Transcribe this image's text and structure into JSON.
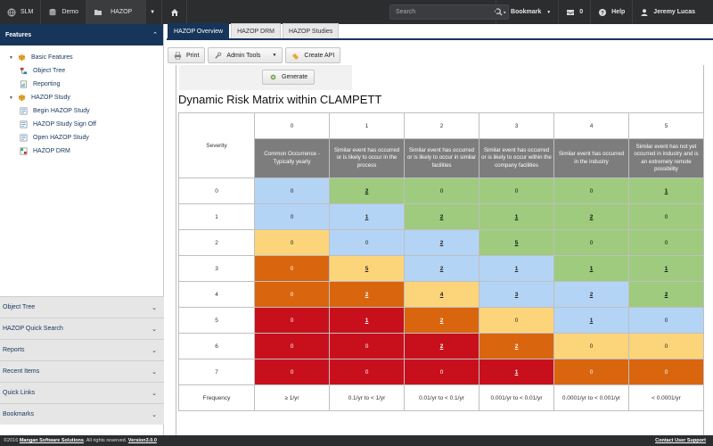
{
  "topbar": {
    "items": [
      {
        "label": "SLM",
        "icon": "globe-icon"
      },
      {
        "label": "Demo",
        "icon": "database-icon"
      },
      {
        "label": "HAZOP",
        "icon": "folder-icon"
      }
    ],
    "home_icon": "home-icon",
    "search_placeholder": "Search",
    "bookmark_label": "Bookmark",
    "inbox_count": "0",
    "help_label": "Help",
    "user_name": "Jeremy Lucas"
  },
  "sidebar": {
    "header": "Features",
    "tree": [
      {
        "label": "Basic Features",
        "level": 1,
        "expanded": true
      },
      {
        "label": "Object Tree",
        "level": 2
      },
      {
        "label": "Reporting",
        "level": 2
      },
      {
        "label": "HAZOP Study",
        "level": 1,
        "expanded": true
      },
      {
        "label": "Begin HAZOP Study",
        "level": 2
      },
      {
        "label": "HAZOP Study Sign Off",
        "level": 2
      },
      {
        "label": "Open HAZOP Study",
        "level": 2
      },
      {
        "label": "HAZOP DRM",
        "level": 2
      }
    ],
    "panels": [
      "Object Tree",
      "HAZOP Quick Search",
      "Reports",
      "Recent Items",
      "Quick Links",
      "Bookmarks"
    ]
  },
  "tabs": [
    "HAZOP Overview",
    "HAZOP DRM",
    "HAZOP Studies"
  ],
  "toolbar": {
    "print": "Print",
    "admin": "Admin Tools",
    "api": "Create API"
  },
  "generate_label": "Generate",
  "matrix": {
    "title": "Dynamic Risk Matrix within CLAMPETT",
    "severity_label": "Severity",
    "frequency_label": "Frequency",
    "col_numbers": [
      "0",
      "1",
      "2",
      "3",
      "4",
      "5"
    ],
    "likelihoods": [
      "Common Occurrence - Typically yearly",
      "Similar event has occurred or is likely to occur in the process",
      "Similar event has occurred or is likely to occur in similar facilities",
      "Similar event has occurred or is likely to occur within the company facilities",
      "Similar event has occurred in the industry",
      "Similar event has not yet occurred in industry and is an extremely remote possibility"
    ],
    "frequencies": [
      "≥ 1/yr",
      "0.1/yr to < 1/yr",
      "0.01/yr to < 0.1/yr",
      "0.001/yr to < 0.01/yr",
      "0.0001/yr to < 0.001/yr",
      "< 0.0001/yr"
    ],
    "rows": [
      {
        "severity": "0",
        "cells": [
          {
            "v": "0",
            "c": "blue"
          },
          {
            "v": "2",
            "c": "green",
            "link": true
          },
          {
            "v": "0",
            "c": "green"
          },
          {
            "v": "0",
            "c": "green"
          },
          {
            "v": "0",
            "c": "green"
          },
          {
            "v": "1",
            "c": "green",
            "link": true
          }
        ]
      },
      {
        "severity": "1",
        "cells": [
          {
            "v": "0",
            "c": "blue"
          },
          {
            "v": "1",
            "c": "blue",
            "link": true
          },
          {
            "v": "2",
            "c": "green",
            "link": true
          },
          {
            "v": "1",
            "c": "green",
            "link": true
          },
          {
            "v": "2",
            "c": "green",
            "link": true
          },
          {
            "v": "0",
            "c": "green"
          }
        ]
      },
      {
        "severity": "2",
        "cells": [
          {
            "v": "0",
            "c": "yellow"
          },
          {
            "v": "0",
            "c": "blue"
          },
          {
            "v": "2",
            "c": "blue",
            "link": true
          },
          {
            "v": "5",
            "c": "green",
            "link": true
          },
          {
            "v": "0",
            "c": "green"
          },
          {
            "v": "0",
            "c": "green"
          }
        ]
      },
      {
        "severity": "3",
        "cells": [
          {
            "v": "0",
            "c": "orange"
          },
          {
            "v": "5",
            "c": "yellow",
            "link": true
          },
          {
            "v": "2",
            "c": "blue",
            "link": true
          },
          {
            "v": "1",
            "c": "blue",
            "link": true
          },
          {
            "v": "1",
            "c": "green",
            "link": true
          },
          {
            "v": "1",
            "c": "green",
            "link": true
          }
        ]
      },
      {
        "severity": "4",
        "cells": [
          {
            "v": "0",
            "c": "orange"
          },
          {
            "v": "2",
            "c": "orange",
            "link": true
          },
          {
            "v": "4",
            "c": "yellow",
            "link": true
          },
          {
            "v": "3",
            "c": "blue",
            "link": true
          },
          {
            "v": "2",
            "c": "blue",
            "link": true
          },
          {
            "v": "2",
            "c": "green",
            "link": true
          }
        ]
      },
      {
        "severity": "5",
        "cells": [
          {
            "v": "0",
            "c": "red"
          },
          {
            "v": "1",
            "c": "red",
            "link": true
          },
          {
            "v": "2",
            "c": "orange",
            "link": true
          },
          {
            "v": "0",
            "c": "yellow"
          },
          {
            "v": "1",
            "c": "blue",
            "link": true
          },
          {
            "v": "0",
            "c": "blue"
          }
        ]
      },
      {
        "severity": "6",
        "cells": [
          {
            "v": "0",
            "c": "red"
          },
          {
            "v": "0",
            "c": "red"
          },
          {
            "v": "2",
            "c": "red",
            "link": true
          },
          {
            "v": "2",
            "c": "orange",
            "link": true
          },
          {
            "v": "0",
            "c": "yellow"
          },
          {
            "v": "0",
            "c": "yellow"
          }
        ]
      },
      {
        "severity": "7",
        "cells": [
          {
            "v": "0",
            "c": "red"
          },
          {
            "v": "0",
            "c": "red"
          },
          {
            "v": "0",
            "c": "red"
          },
          {
            "v": "1",
            "c": "red",
            "link": true
          },
          {
            "v": "0",
            "c": "orange"
          },
          {
            "v": "0",
            "c": "orange"
          }
        ]
      }
    ]
  },
  "footer": {
    "copyright": "©2016 ",
    "company": "Mangan Software Solutions",
    "rights": ". All rights reserved. ",
    "version": "Version3.0.0",
    "support": "Contact User Support"
  },
  "colors": {
    "blue": "#b4d4f5",
    "green": "#9ecb7e",
    "yellow": "#fcd57b",
    "orange": "#d9650f",
    "red": "#c8101d",
    "brand": "#17355b"
  }
}
